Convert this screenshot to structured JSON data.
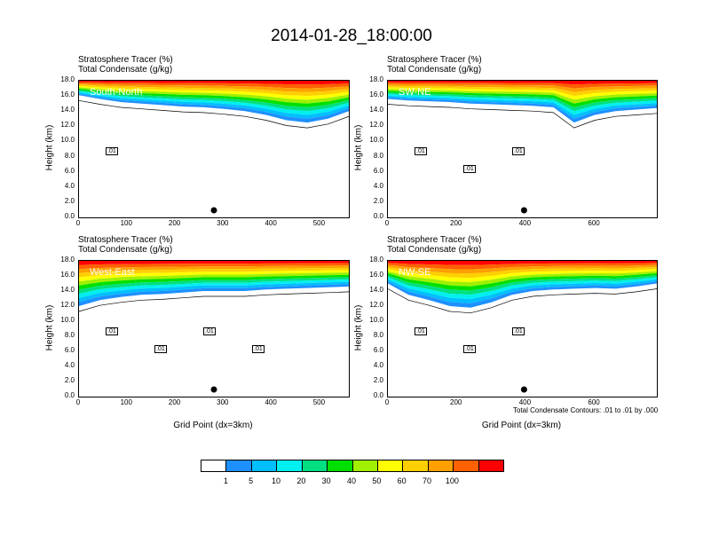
{
  "title": "2014-01-28_18:00:00",
  "panel_titles": {
    "line1": "Stratosphere Tracer   (%)",
    "line2": "Total Condensate   (g/kg)"
  },
  "y_axis_label": "Height (km)",
  "x_axis_label": "Grid Point (dx=3km)",
  "contour_note": "Total Condensate Contours: .01 to .01 by .000",
  "colorbar": {
    "labels": [
      "1",
      "5",
      "10",
      "20",
      "30",
      "40",
      "50",
      "60",
      "70",
      "100"
    ],
    "colors": [
      "#ffffff",
      "#1e90ff",
      "#00bfff",
      "#00f0f0",
      "#00e080",
      "#00e000",
      "#a0f000",
      "#ffff00",
      "#ffd000",
      "#ffa000",
      "#ff6000",
      "#ff0000"
    ]
  },
  "chart_data": [
    {
      "type": "heatmap",
      "panel": "South-North",
      "region_label": "South-North",
      "ylabel": "Height (km)",
      "ylim": [
        0,
        18
      ],
      "yticks": [
        "0.0",
        "2.0",
        "4.0",
        "6.0",
        "8.0",
        "10.0",
        "12.0",
        "14.0",
        "16.0",
        "18.0"
      ],
      "xlim": [
        0,
        560
      ],
      "xticks": [
        "0",
        "100",
        "200",
        "300",
        "400",
        "500"
      ],
      "xtick_values": [
        0,
        100,
        200,
        300,
        400,
        500
      ],
      "contour_labels": [
        ".01"
      ],
      "tracer_top_km": [
        16.1,
        15.6,
        15.2,
        15.0,
        14.8,
        14.6,
        14.5,
        14.3,
        14.0,
        13.5,
        12.8,
        12.5,
        13.0,
        14.0
      ],
      "marker_x": 280
    },
    {
      "type": "heatmap",
      "panel": "SW-NE",
      "region_label": "SW-NE",
      "ylabel": "Height (km)",
      "ylim": [
        0,
        18
      ],
      "yticks": [
        "0.0",
        "2.0",
        "4.0",
        "6.0",
        "8.0",
        "10.0",
        "12.0",
        "14.0",
        "16.0",
        "18.0"
      ],
      "xlim": [
        0,
        780
      ],
      "xticks": [
        "0",
        "200",
        "400",
        "600"
      ],
      "xtick_values": [
        0,
        200,
        400,
        600
      ],
      "contour_labels": [
        ".01",
        ".01",
        ".01"
      ],
      "tracer_top_km": [
        15.6,
        15.4,
        15.3,
        15.2,
        15.0,
        14.9,
        14.8,
        14.7,
        14.5,
        12.5,
        13.5,
        14.0,
        14.2,
        14.4
      ],
      "marker_x": 395
    },
    {
      "type": "heatmap",
      "panel": "West-East",
      "region_label": "West-East",
      "ylabel": "Height (km)",
      "ylim": [
        0,
        18
      ],
      "yticks": [
        "0.0",
        "2.0",
        "4.0",
        "6.0",
        "8.0",
        "10.0",
        "12.0",
        "14.0",
        "16.0",
        "18.0"
      ],
      "xlim": [
        0,
        560
      ],
      "xticks": [
        "0",
        "100",
        "200",
        "300",
        "400",
        "500"
      ],
      "xtick_values": [
        0,
        100,
        200,
        300,
        400,
        500
      ],
      "xlabel": "Grid Point (dx=3km)",
      "contour_labels": [
        ".01",
        ".01",
        ".01",
        ".01"
      ],
      "tracer_top_km": [
        12.0,
        12.8,
        13.2,
        13.5,
        13.6,
        13.8,
        14.0,
        14.0,
        14.0,
        14.2,
        14.3,
        14.4,
        14.5,
        14.6
      ],
      "marker_x": 280
    },
    {
      "type": "heatmap",
      "panel": "NW-SE",
      "region_label": "NW-SE",
      "ylabel": "Height (km)",
      "ylim": [
        0,
        18
      ],
      "yticks": [
        "0.0",
        "2.0",
        "4.0",
        "6.0",
        "8.0",
        "10.0",
        "12.0",
        "14.0",
        "16.0",
        "18.0"
      ],
      "xlim": [
        0,
        780
      ],
      "xticks": [
        "0",
        "200",
        "400",
        "600"
      ],
      "xtick_values": [
        0,
        200,
        400,
        600
      ],
      "xlabel": "Grid Point (dx=3km)",
      "contour_labels": [
        ".01",
        ".01",
        ".01"
      ],
      "tracer_top_km": [
        15.0,
        13.5,
        12.8,
        12.0,
        11.8,
        12.5,
        13.5,
        14.0,
        14.2,
        14.3,
        14.4,
        14.3,
        14.6,
        15.0
      ],
      "marker_x": 395
    }
  ]
}
